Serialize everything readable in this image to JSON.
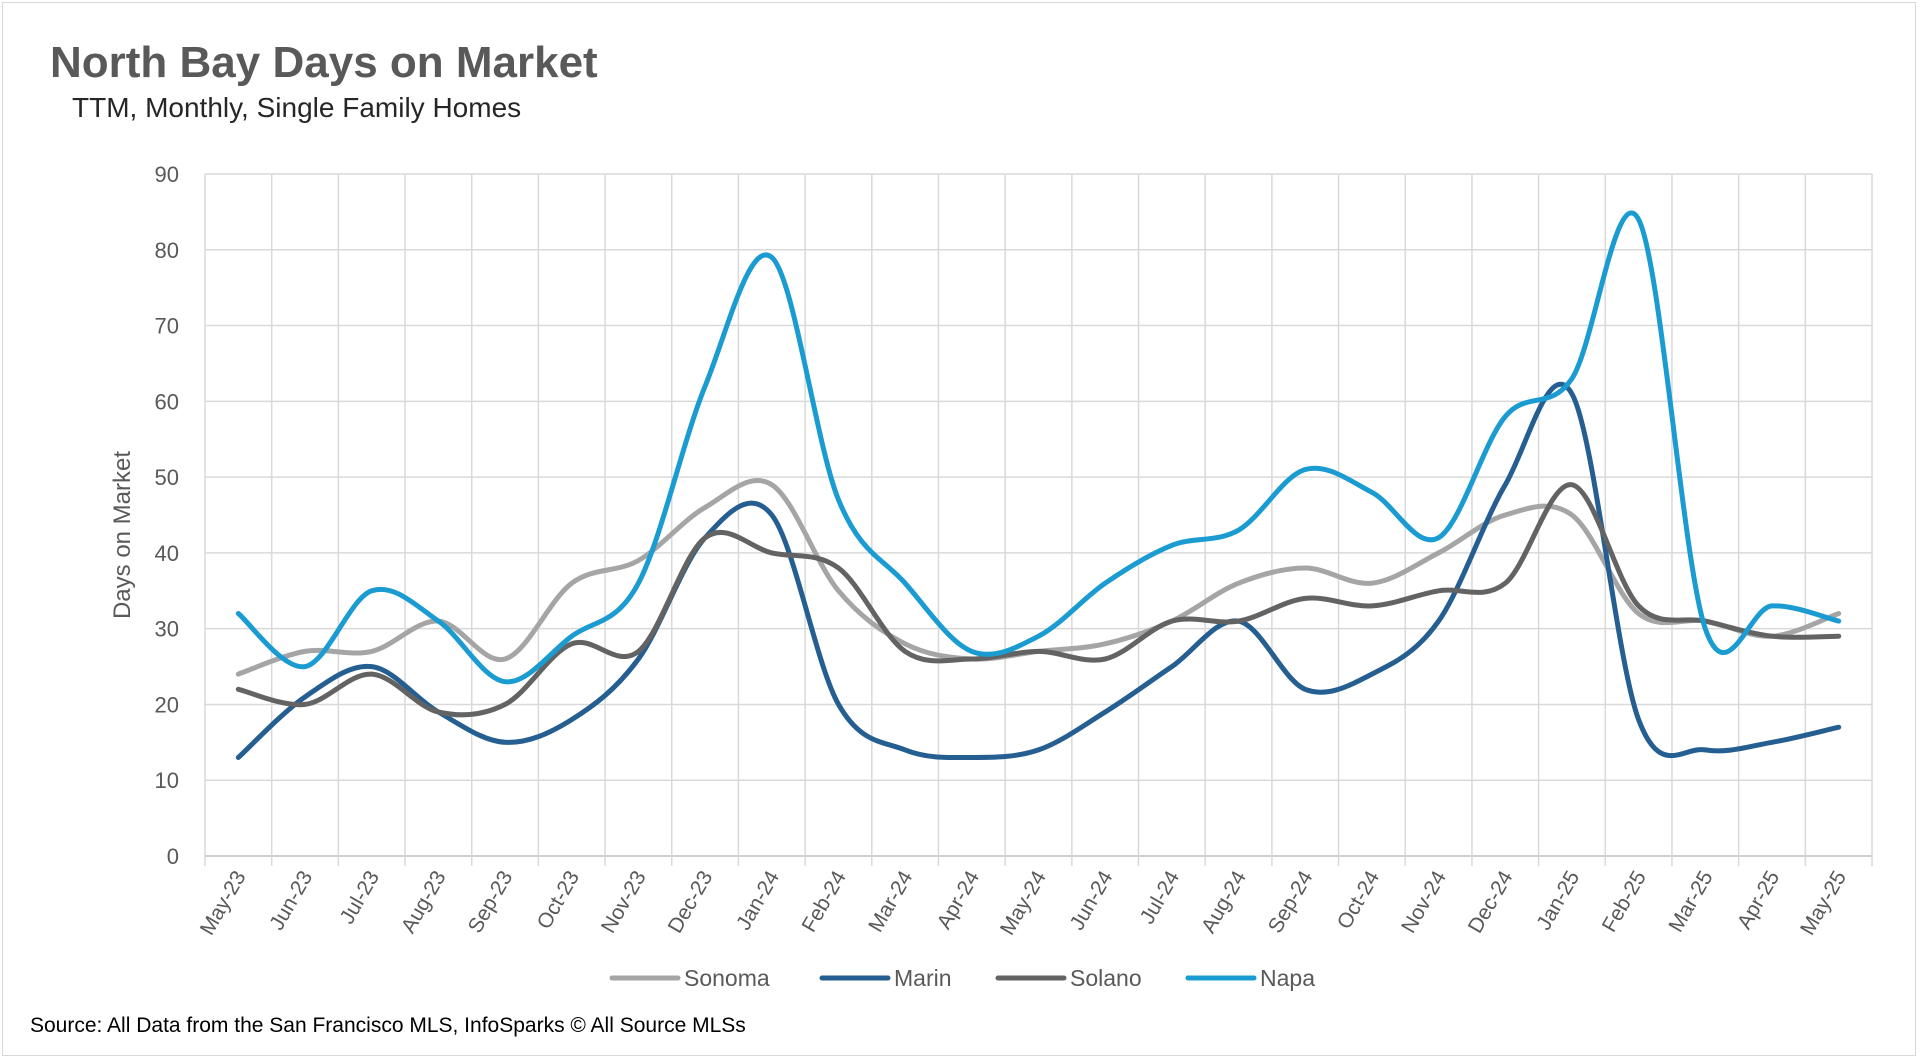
{
  "chart_data": {
    "type": "line",
    "title": "North Bay Days on Market",
    "subtitle": "TTM, Monthly, Single Family Homes",
    "ylabel": "Days on Market",
    "xlabel": "",
    "ylim": [
      0,
      90
    ],
    "yticks": [
      0,
      10,
      20,
      30,
      40,
      50,
      60,
      70,
      80,
      90
    ],
    "categories": [
      "May-23",
      "Jun-23",
      "Jul-23",
      "Aug-23",
      "Sep-23",
      "Oct-23",
      "Nov-23",
      "Dec-23",
      "Jan-24",
      "Feb-24",
      "Mar-24",
      "Apr-24",
      "May-24",
      "Jun-24",
      "Jul-24",
      "Aug-24",
      "Sep-24",
      "Oct-24",
      "Nov-24",
      "Dec-24",
      "Jan-25",
      "Feb-25",
      "Mar-25",
      "Apr-25",
      "May-25"
    ],
    "grid": true,
    "legend_position": "bottom",
    "series": [
      {
        "name": "Sonoma",
        "color": "#a5a5a5",
        "values": [
          24,
          27,
          27,
          31,
          26,
          36,
          39,
          46,
          49,
          35,
          28,
          26,
          27,
          28,
          31,
          36,
          38,
          36,
          40,
          45,
          45,
          32,
          31,
          29,
          32
        ]
      },
      {
        "name": "Marin",
        "color": "#255e91",
        "values": [
          13,
          21,
          25,
          19,
          15,
          18,
          26,
          42,
          45,
          20,
          14,
          13,
          14,
          19,
          25,
          31,
          22,
          24,
          31,
          49,
          61,
          18,
          14,
          15,
          17
        ]
      },
      {
        "name": "Solano",
        "color": "#636363",
        "values": [
          22,
          20,
          24,
          19,
          20,
          28,
          27,
          42,
          40,
          38,
          27,
          26,
          27,
          26,
          31,
          31,
          34,
          33,
          35,
          36,
          49,
          33,
          31,
          29,
          29
        ]
      },
      {
        "name": "Napa",
        "color": "#1a9bd1",
        "values": [
          32,
          25,
          35,
          31,
          23,
          29,
          36,
          62,
          79,
          47,
          36,
          27,
          29,
          36,
          41,
          43,
          51,
          48,
          42,
          58,
          63,
          84,
          30,
          33,
          31
        ]
      }
    ]
  },
  "source_note": "Source: All Data from the San Francisco MLS, InfoSparks © All Source MLSs"
}
